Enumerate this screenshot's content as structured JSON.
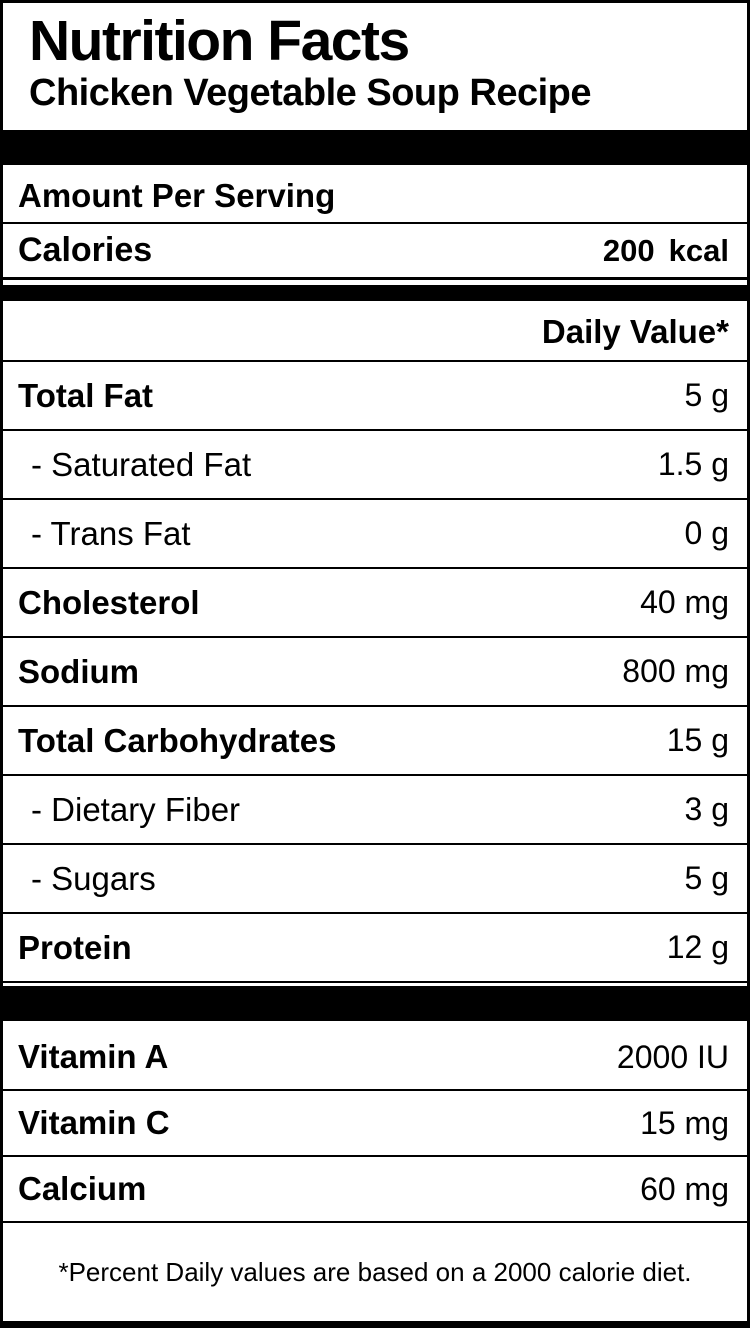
{
  "header": {
    "title": "Nutrition Facts",
    "subtitle": "Chicken Vegetable Soup Recipe"
  },
  "serving": {
    "amount_header": "Amount Per Serving",
    "calories_label": "Calories",
    "calories_value": "200",
    "calories_unit": "kcal"
  },
  "daily_value_header": "Daily Value*",
  "nutrients": [
    {
      "label": "Total Fat",
      "value": "5 g"
    },
    {
      "label": "- Saturated Fat",
      "value": "1.5 g"
    },
    {
      "label": "- Trans Fat",
      "value": "0 g"
    },
    {
      "label": "Cholesterol",
      "value": "40 mg"
    },
    {
      "label": "Sodium",
      "value": "800 mg"
    },
    {
      "label": "Total Carbohydrates",
      "value": "15 g"
    },
    {
      "label": "- Dietary Fiber",
      "value": "3 g"
    },
    {
      "label": "- Sugars",
      "value": "5 g"
    },
    {
      "label": "Protein",
      "value": "12 g"
    }
  ],
  "vitamins": [
    {
      "label": "Vitamin A",
      "value": "2000 IU"
    },
    {
      "label": "Vitamin C",
      "value": "15 mg"
    },
    {
      "label": "Calcium",
      "value": "60 mg"
    }
  ],
  "footnote": "*Percent Daily values are based on a 2000 calorie diet.",
  "colors": {
    "text": "#000000",
    "background": "#ffffff",
    "bar": "#000000"
  }
}
